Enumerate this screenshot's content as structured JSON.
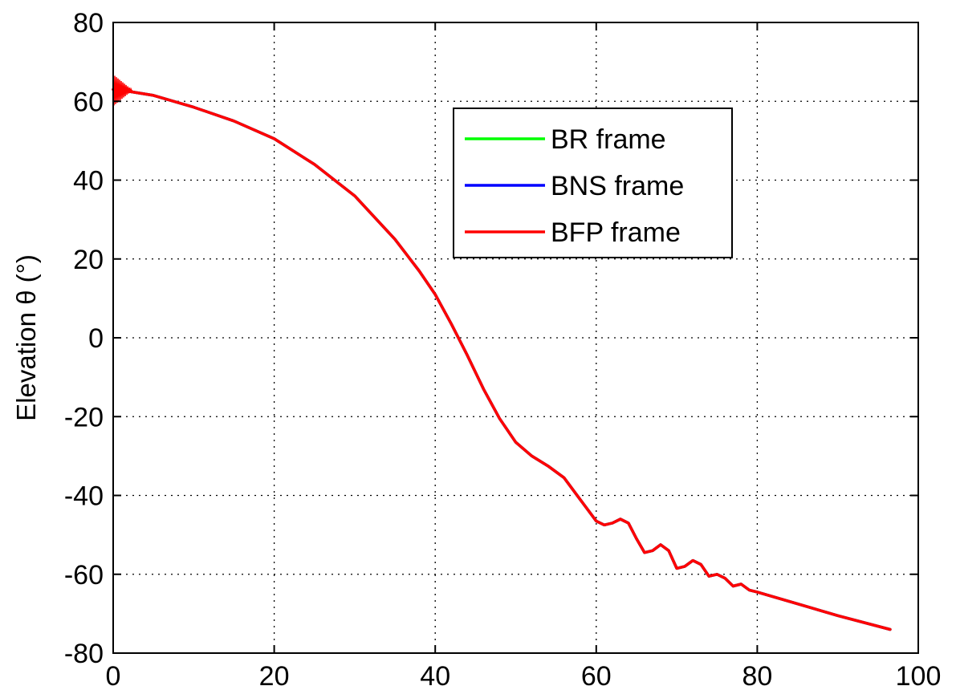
{
  "chart_data": {
    "type": "line",
    "title": "",
    "xlabel": "",
    "ylabel": "Elevation θ (°)",
    "xlim": [
      0,
      100
    ],
    "ylim": [
      -80,
      80
    ],
    "xticks": [
      "0",
      "20",
      "40",
      "60",
      "80",
      "100"
    ],
    "yticks": [
      "80",
      "60",
      "40",
      "20",
      "0",
      "-20",
      "-40",
      "-60",
      "-80"
    ],
    "grid": "dotted",
    "legend_position": "inside-upper-right",
    "series": [
      {
        "name": "BR frame",
        "color": "#00ff00",
        "x": [
          0,
          2,
          5,
          10,
          15,
          20,
          25,
          30,
          35,
          38,
          40,
          42,
          44,
          46,
          48,
          50,
          52,
          54,
          56,
          58,
          60,
          61,
          62,
          63,
          64,
          65,
          66,
          67,
          68,
          69,
          70,
          71,
          72,
          73,
          74,
          75,
          76,
          77,
          78,
          79,
          80,
          85,
          90,
          96.5
        ],
        "y": [
          63,
          62.5,
          61.5,
          58.5,
          55,
          50.5,
          44,
          36,
          25,
          17,
          11,
          3.5,
          -4.5,
          -13,
          -20.5,
          -26.5,
          -30,
          -32.5,
          -35.5,
          -41,
          -46.5,
          -47.5,
          -47,
          -46,
          -47,
          -51,
          -54.5,
          -54,
          -52.5,
          -54,
          -58.5,
          -58,
          -56.5,
          -57.5,
          -60.5,
          -60,
          -61,
          -63,
          -62.5,
          -64,
          -64.5,
          -67.5,
          -70.5,
          -74
        ]
      },
      {
        "name": "BNS frame",
        "color": "#0000ff",
        "x": [
          0,
          2,
          5,
          10,
          15,
          20,
          25,
          30,
          35,
          38,
          40,
          42,
          44,
          46,
          48,
          50,
          52,
          54,
          56,
          58,
          60,
          61,
          62,
          63,
          64,
          65,
          66,
          67,
          68,
          69,
          70,
          71,
          72,
          73,
          74,
          75,
          76,
          77,
          78,
          79,
          80,
          85,
          90,
          96.5
        ],
        "y": [
          63,
          62.5,
          61.5,
          58.5,
          55,
          50.5,
          44,
          36,
          25,
          17,
          11,
          3.5,
          -4.5,
          -13,
          -20.5,
          -26.5,
          -30,
          -32.5,
          -35.5,
          -41,
          -46.5,
          -47.5,
          -47,
          -46,
          -47,
          -51,
          -54.5,
          -54,
          -52.5,
          -54,
          -58.5,
          -58,
          -56.5,
          -57.5,
          -60.5,
          -60,
          -61,
          -63,
          -62.5,
          -64,
          -64.5,
          -67.5,
          -70.5,
          -74
        ]
      },
      {
        "name": "BFP frame",
        "color": "#ff0000",
        "x": [
          0,
          2,
          5,
          10,
          15,
          20,
          25,
          30,
          35,
          38,
          40,
          42,
          44,
          46,
          48,
          50,
          52,
          54,
          56,
          58,
          60,
          61,
          62,
          63,
          64,
          65,
          66,
          67,
          68,
          69,
          70,
          71,
          72,
          73,
          74,
          75,
          76,
          77,
          78,
          79,
          80,
          85,
          90,
          96.5
        ],
        "y": [
          63,
          62.5,
          61.5,
          58.5,
          55,
          50.5,
          44,
          36,
          25,
          17,
          11,
          3.5,
          -4.5,
          -13,
          -20.5,
          -26.5,
          -30,
          -32.5,
          -35.5,
          -41,
          -46.5,
          -47.5,
          -47,
          -46,
          -47,
          -51,
          -54.5,
          -54,
          -52.5,
          -54,
          -58.5,
          -58,
          -56.5,
          -57.5,
          -60.5,
          -60,
          -61,
          -63,
          -62.5,
          -64,
          -64.5,
          -67.5,
          -70.5,
          -74
        ]
      }
    ]
  }
}
